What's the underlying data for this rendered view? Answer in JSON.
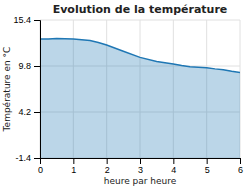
{
  "chart_data": {
    "type": "area",
    "title": "Evolution de la température",
    "xlabel": "heure par heure",
    "ylabel": "Température en °C",
    "x": [
      0,
      0.25,
      0.5,
      0.75,
      1.0,
      1.25,
      1.5,
      1.75,
      2.0,
      2.5,
      3.0,
      3.5,
      4.0,
      4.25,
      4.5,
      4.75,
      5.0,
      5.25,
      5.5,
      5.75,
      6.0
    ],
    "values": [
      13.1,
      13.1,
      13.15,
      13.12,
      13.1,
      13.0,
      12.9,
      12.65,
      12.35,
      11.6,
      10.85,
      10.35,
      10.05,
      9.85,
      9.7,
      9.65,
      9.6,
      9.45,
      9.35,
      9.15,
      9.0
    ],
    "xlim": [
      0,
      6
    ],
    "ylim": [
      -1.4,
      15.4
    ],
    "xticks": [
      0,
      1,
      2,
      3,
      4,
      5,
      6
    ],
    "yticks": [
      -1.4,
      4.2,
      9.8,
      15.4
    ],
    "grid": true
  }
}
